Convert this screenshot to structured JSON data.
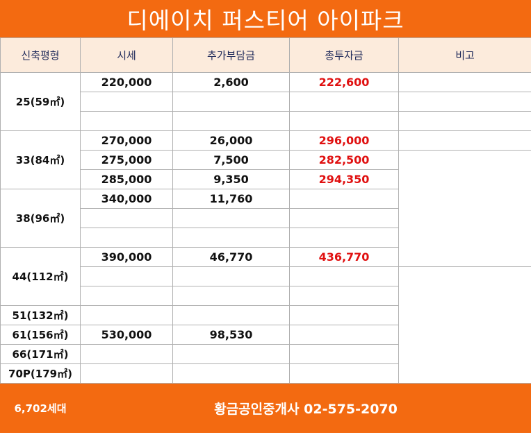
{
  "title": "디에이치 퍼스티어 아이파크",
  "columns": [
    "신축평형",
    "시세",
    "추가부담금",
    "총투자금",
    "비고"
  ],
  "rows": [
    {
      "type": "25(59㎡)",
      "price": "220,000",
      "extra": "2,600",
      "total": "222,600"
    },
    {
      "type": "",
      "price": "",
      "extra": "",
      "total": ""
    },
    {
      "type": "",
      "price": "",
      "extra": "",
      "total": ""
    },
    {
      "type": "33(84㎡)",
      "price": "270,000",
      "extra": "26,000",
      "total": "296,000"
    },
    {
      "type": "",
      "price": "275,000",
      "extra": "7,500",
      "total": "282,500"
    },
    {
      "type": "",
      "price": "285,000",
      "extra": "9,350",
      "total": "294,350"
    },
    {
      "type": "38(96㎡)",
      "price": "340,000",
      "extra": "11,760",
      "total": ""
    },
    {
      "type": "",
      "price": "",
      "extra": "",
      "total": ""
    },
    {
      "type": "",
      "price": "",
      "extra": "",
      "total": ""
    },
    {
      "type": "44(112㎡)",
      "price": "390,000",
      "extra": "46,770",
      "total": "436,770"
    },
    {
      "type": "",
      "price": "",
      "extra": "",
      "total": ""
    },
    {
      "type": "",
      "price": "",
      "extra": "",
      "total": ""
    },
    {
      "type": "51(132㎡)",
      "price": "",
      "extra": "",
      "total": ""
    },
    {
      "type": "61(156㎡)",
      "price": "530,000",
      "extra": "98,530",
      "total": ""
    },
    {
      "type": "66(171㎡)",
      "price": "",
      "extra": "",
      "total": ""
    },
    {
      "type": "70P(179㎡)",
      "price": "",
      "extra": "",
      "total": ""
    }
  ],
  "footer": {
    "households": "6,702세대",
    "agent": "황금공인중개사 02-575-2070"
  },
  "colors": {
    "accent": "#f36a11",
    "header_bg": "#fcebdc",
    "total_text": "#e01010",
    "agent_text": "#ffe14a"
  }
}
